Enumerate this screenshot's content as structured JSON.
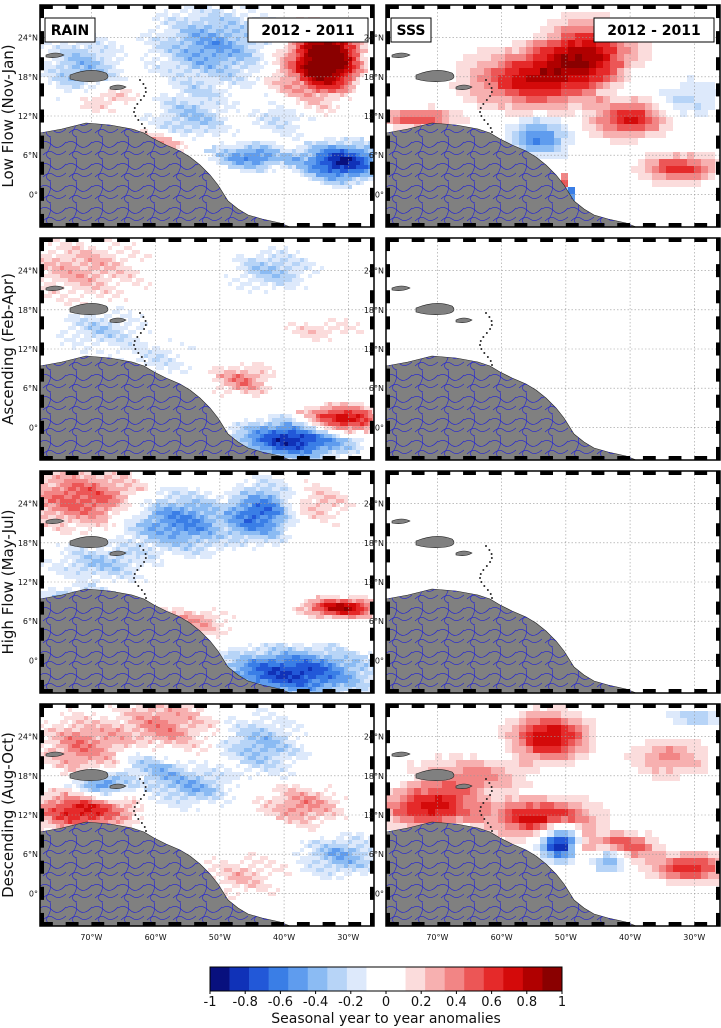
{
  "panel_tags": {
    "rain": "RAIN",
    "sss": "SSS",
    "period": "2012 - 2011"
  },
  "rows": [
    {
      "label": "Low Flow (Nov-Jan)"
    },
    {
      "label": "Ascending (Feb-Apr)"
    },
    {
      "label": "High Flow (May-Jul)"
    },
    {
      "label": "Descending (Aug-Oct)"
    }
  ],
  "lat_ticks": [
    "24°N",
    "18°N",
    "12°N",
    "6°N",
    "0°"
  ],
  "lon_ticks": [
    "70°W",
    "60°W",
    "50°W",
    "40°W",
    "30°W"
  ],
  "colorbar": {
    "ticks": [
      "-1",
      "-0.8",
      "-0.6",
      "-0.4",
      "-0.2",
      "0",
      "0.2",
      "0.4",
      "0.6",
      "0.8",
      "1"
    ],
    "title": "Seasonal year to year anomalies",
    "range": [
      -1,
      1
    ],
    "colors": [
      "#08107e",
      "#1032b8",
      "#2258d8",
      "#3a7ee6",
      "#5f9cee",
      "#8bbbf3",
      "#b7d4f7",
      "#dde9fb",
      "#ffffff",
      "#ffffff",
      "#fbdcdc",
      "#f7b0b0",
      "#f28585",
      "#ec5656",
      "#e52a2a",
      "#d40a0a",
      "#b00000",
      "#8a0000"
    ]
  },
  "map_colors": {
    "land": "#808080",
    "rivers": "#1f1fd8",
    "ocean": "#ffffff"
  }
}
